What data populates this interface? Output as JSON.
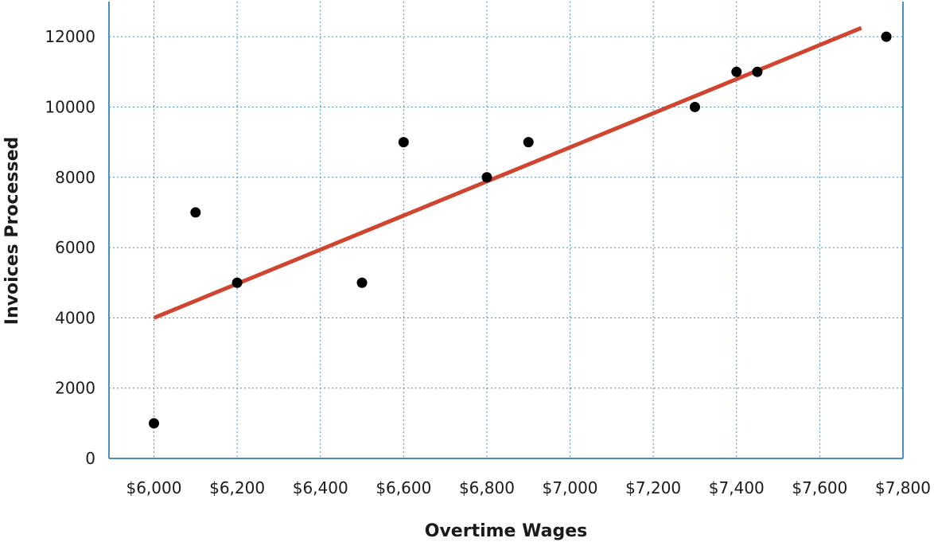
{
  "chart_data": {
    "type": "scatter",
    "title": "",
    "xlabel": "Overtime Wages",
    "ylabel": "Invoices Processed",
    "x_tick_labels": [
      "$6,000",
      "$6,200",
      "$6,400",
      "$6,600",
      "$6,800",
      "$7,000",
      "$7,200",
      "$7,400",
      "$7,600",
      "$7,800"
    ],
    "x_ticks": [
      6000,
      6200,
      6400,
      6600,
      6800,
      7000,
      7200,
      7400,
      7600,
      7800
    ],
    "y_tick_labels": [
      "0",
      "2000",
      "4000",
      "6000",
      "8000",
      "10000",
      "12000"
    ],
    "y_ticks": [
      0,
      2000,
      4000,
      6000,
      8000,
      10000,
      12000
    ],
    "xlim": [
      5892,
      7800
    ],
    "ylim": [
      0,
      13000
    ],
    "grid": true,
    "points": [
      {
        "x": 6000,
        "y": 1000
      },
      {
        "x": 6100,
        "y": 7000
      },
      {
        "x": 6200,
        "y": 5000
      },
      {
        "x": 6500,
        "y": 5000
      },
      {
        "x": 6600,
        "y": 9000
      },
      {
        "x": 6800,
        "y": 8000
      },
      {
        "x": 6900,
        "y": 9000
      },
      {
        "x": 7300,
        "y": 10000
      },
      {
        "x": 7400,
        "y": 11000
      },
      {
        "x": 7450,
        "y": 11000
      },
      {
        "x": 7760,
        "y": 12000
      }
    ],
    "trend_line": {
      "start": {
        "x": 6000,
        "y": 4000
      },
      "end": {
        "x": 7700,
        "y": 12250
      }
    },
    "colors": {
      "points": "#000000",
      "trend_line": "#d0452f",
      "grid": "#4a90c0",
      "axis": "#4a8fb8"
    }
  }
}
